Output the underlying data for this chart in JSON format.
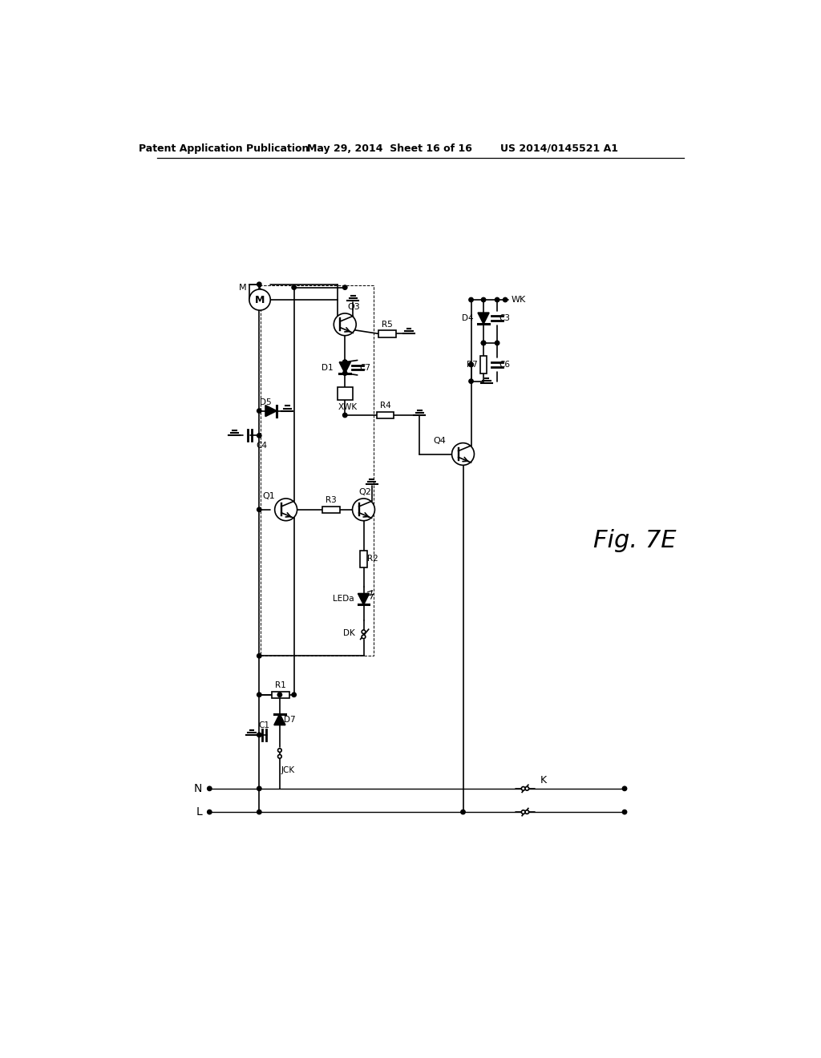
{
  "bg_color": "#ffffff",
  "line_color": "#000000",
  "header_left": "Patent Application Publication",
  "header_mid": "May 29, 2014  Sheet 16 of 16",
  "header_right": "US 2014/0145521 A1",
  "fig_label": "Fig. 7E"
}
